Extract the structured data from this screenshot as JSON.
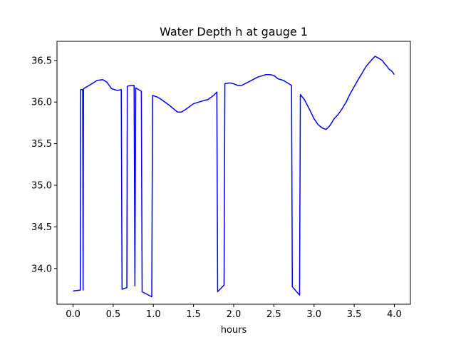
{
  "chart_data": {
    "type": "line",
    "title": "Water Depth h at gauge 1",
    "xlabel": "hours",
    "ylabel": "",
    "xlim": [
      -0.2,
      4.2
    ],
    "ylim": [
      33.57,
      36.73
    ],
    "xticks": [
      0.0,
      0.5,
      1.0,
      1.5,
      2.0,
      2.5,
      3.0,
      3.5,
      4.0
    ],
    "xtick_labels": [
      "0.0",
      "0.5",
      "1.0",
      "1.5",
      "2.0",
      "2.5",
      "3.0",
      "3.5",
      "4.0"
    ],
    "yticks": [
      34.0,
      34.5,
      35.0,
      35.5,
      36.0,
      36.5
    ],
    "ytick_labels": [
      "34.0",
      "34.5",
      "35.0",
      "35.5",
      "36.0",
      "36.5"
    ],
    "grid": false,
    "series": [
      {
        "color": "#0000ff",
        "x": [
          0.0,
          0.09,
          0.095,
          0.12,
          0.125,
          0.13,
          0.2,
          0.3,
          0.37,
          0.42,
          0.48,
          0.55,
          0.6,
          0.61,
          0.67,
          0.675,
          0.72,
          0.76,
          0.77,
          0.78,
          0.85,
          0.86,
          0.98,
          0.99,
          1.05,
          1.1,
          1.2,
          1.3,
          1.35,
          1.4,
          1.5,
          1.6,
          1.68,
          1.75,
          1.79,
          1.8,
          1.88,
          1.89,
          1.95,
          2.0,
          2.05,
          2.1,
          2.2,
          2.3,
          2.4,
          2.45,
          2.5,
          2.55,
          2.62,
          2.72,
          2.73,
          2.82,
          2.83,
          2.88,
          2.95,
          3.0,
          3.05,
          3.1,
          3.15,
          3.2,
          3.25,
          3.3,
          3.35,
          3.4,
          3.45,
          3.55,
          3.65,
          3.72,
          3.76,
          3.8,
          3.85,
          3.88,
          3.9,
          3.93,
          3.97,
          4.0
        ],
        "y": [
          33.73,
          33.74,
          36.15,
          36.15,
          33.74,
          36.16,
          36.2,
          36.26,
          36.27,
          36.24,
          36.16,
          36.14,
          36.15,
          33.75,
          33.77,
          36.19,
          36.2,
          36.2,
          33.79,
          36.17,
          36.13,
          33.72,
          33.66,
          36.08,
          36.06,
          36.03,
          35.96,
          35.88,
          35.88,
          35.91,
          35.98,
          36.01,
          36.03,
          36.08,
          36.12,
          33.72,
          33.8,
          36.22,
          36.23,
          36.22,
          36.2,
          36.2,
          36.25,
          36.3,
          36.33,
          36.33,
          36.32,
          36.28,
          36.26,
          36.2,
          33.78,
          33.68,
          36.09,
          36.03,
          35.9,
          35.8,
          35.73,
          35.69,
          35.67,
          35.72,
          35.8,
          35.85,
          35.92,
          36.0,
          36.1,
          36.27,
          36.43,
          36.51,
          36.55,
          36.53,
          36.5,
          36.46,
          36.44,
          36.4,
          36.37,
          36.33
        ]
      }
    ]
  }
}
